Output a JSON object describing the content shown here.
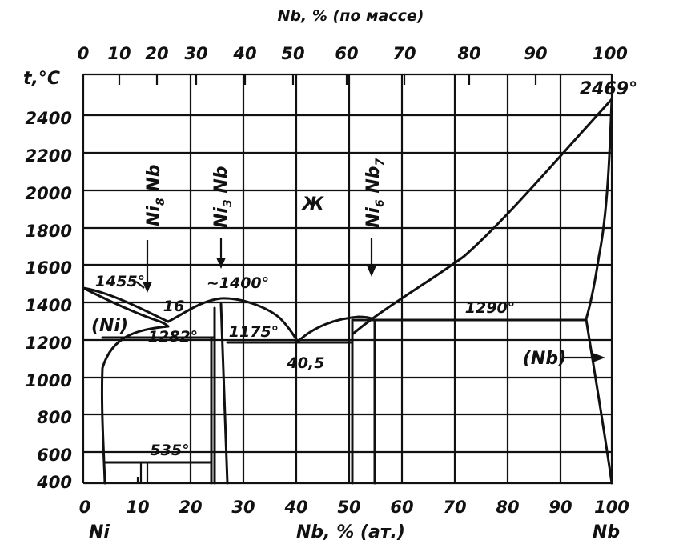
{
  "top_axis": {
    "title": "Nb, % (по массе)",
    "ticks": [
      "0",
      "10",
      "20",
      "30",
      "40",
      "50",
      "60",
      "70",
      "80",
      "90",
      "100"
    ],
    "values": [
      0,
      10,
      20,
      30,
      40,
      50,
      60,
      70,
      80,
      90,
      100
    ]
  },
  "bottom_axis": {
    "title": "Nb, % (ат.)",
    "ticks": [
      "0",
      "10",
      "20",
      "30",
      "40",
      "50",
      "60",
      "70",
      "80",
      "90",
      "100"
    ],
    "left_element": "Ni",
    "right_element": "Nb"
  },
  "y_axis": {
    "title": "t,°C",
    "ticks": [
      "2400",
      "2200",
      "2000",
      "1800",
      "1600",
      "1400",
      "1200",
      "1000",
      "800",
      "600",
      "400"
    ],
    "range": [
      400,
      2500
    ]
  },
  "labels": {
    "liquid": "Ж",
    "ni_solid": "(Ni)",
    "nb_solid": "(Nb)",
    "t_ni_melt": "1455°",
    "t_nb_melt": "2469°",
    "t_eutectic_left": "1282°",
    "t_eutectic_left_conc": "16",
    "t_ni3nb_melt": "~1400°",
    "t_eutectic_mid": "1175°",
    "t_eutectic_mid_conc": "40,5",
    "t_peritectic": "1290°",
    "t_ni8nb": "535°"
  },
  "phases": {
    "ni8nb_a": "Ni",
    "ni8nb_b": "8",
    "ni8nb_c": " Nb",
    "ni3nb_a": "Ni",
    "ni3nb_b": "3",
    "ni3nb_c": " Nb",
    "ni6nb7_a": "Ni",
    "ni6nb7_b": "6",
    "ni6nb7_c": " Nb",
    "ni6nb7_d": "7"
  }
}
